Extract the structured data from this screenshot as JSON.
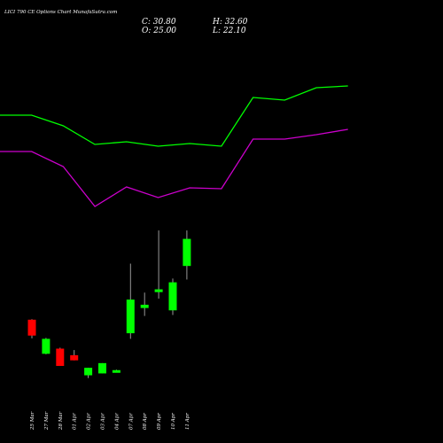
{
  "title": "LICI 790 CE Options Chart MunafaSutra.com",
  "ohlc_readout": {
    "close": "C: 30.80",
    "open": "O: 25.00",
    "high": "H: 32.60",
    "low": "L: 22.10"
  },
  "colors": {
    "background": "#000000",
    "up": "#00ff00",
    "down": "#ff0000",
    "upper_line": "#00ff00",
    "lower_line": "#cc00cc"
  },
  "chart_data": {
    "type": "candlestick",
    "title": "LICI 790 CE Options Chart MunafaSutra.com",
    "x": [
      "25 Mar",
      "27 Mar",
      "28 Mar",
      "01 Apr",
      "02 Apr",
      "03 Apr",
      "04 Apr",
      "07 Apr",
      "08 Apr",
      "09 Apr",
      "10 Apr",
      "11 Apr"
    ],
    "candles": [
      {
        "date": "25 Mar",
        "open": 13.5,
        "high": 13.6,
        "low": 9.5,
        "close": 10.1,
        "dir": "down"
      },
      {
        "date": "27 Mar",
        "open": 6.2,
        "high": 9.6,
        "low": 6.1,
        "close": 9.4,
        "dir": "up"
      },
      {
        "date": "28 Mar",
        "open": 7.3,
        "high": 7.5,
        "low": 3.6,
        "close": 3.6,
        "dir": "down"
      },
      {
        "date": "01 Apr",
        "open": 5.9,
        "high": 7.0,
        "low": 4.8,
        "close": 4.8,
        "dir": "down"
      },
      {
        "date": "02 Apr",
        "open": 1.6,
        "high": 3.2,
        "low": 1.0,
        "close": 3.2,
        "dir": "up"
      },
      {
        "date": "03 Apr",
        "open": 2.0,
        "high": 4.2,
        "low": 2.0,
        "close": 4.2,
        "dir": "up"
      },
      {
        "date": "04 Apr",
        "open": 2.4,
        "high": 2.8,
        "low": 2.4,
        "close": 2.7,
        "dir": "up"
      },
      {
        "date": "07 Apr",
        "open": 10.6,
        "high": 25.5,
        "low": 9.4,
        "close": 17.8,
        "dir": "up"
      },
      {
        "date": "08 Apr",
        "open": 16.0,
        "high": 19.3,
        "low": 14.3,
        "close": 16.7,
        "dir": "up"
      },
      {
        "date": "09 Apr",
        "open": 19.4,
        "high": 32.6,
        "low": 18.0,
        "close": 20.0,
        "dir": "up"
      },
      {
        "date": "10 Apr",
        "open": 15.5,
        "high": 22.3,
        "low": 14.5,
        "close": 21.5,
        "dir": "up"
      },
      {
        "date": "11 Apr",
        "open": 25.0,
        "high": 32.6,
        "low": 22.1,
        "close": 30.8,
        "dir": "up"
      }
    ],
    "line_x": [
      0,
      1,
      2,
      3,
      4,
      5,
      6,
      7,
      8,
      9,
      10,
      11
    ],
    "upper_band": [
      130,
      130,
      142,
      163,
      160,
      165,
      162,
      165,
      110,
      113,
      99,
      97
    ],
    "lower_band": [
      171,
      171,
      188,
      233,
      211,
      223,
      212,
      213,
      157,
      157,
      152,
      146
    ],
    "ylim_price": [
      0,
      33
    ],
    "ylim_bands": [
      90,
      240
    ],
    "grid": false
  }
}
